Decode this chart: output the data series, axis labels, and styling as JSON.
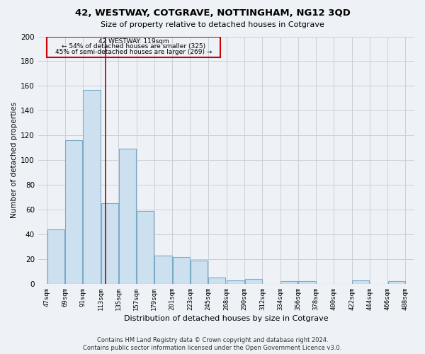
{
  "title": "42, WESTWAY, COTGRAVE, NOTTINGHAM, NG12 3QD",
  "subtitle": "Size of property relative to detached houses in Cotgrave",
  "xlabel": "Distribution of detached houses by size in Cotgrave",
  "ylabel": "Number of detached properties",
  "footnote1": "Contains HM Land Registry data © Crown copyright and database right 2024.",
  "footnote2": "Contains public sector information licensed under the Open Government Licence v3.0.",
  "annotation_line1": "42 WESTWAY: 119sqm",
  "annotation_line2": "← 54% of detached houses are smaller (325)",
  "annotation_line3": "45% of semi-detached houses are larger (269) →",
  "bar_edges": [
    47,
    69,
    91,
    113,
    135,
    157,
    179,
    201,
    223,
    245,
    268,
    290,
    312,
    334,
    356,
    378,
    400,
    422,
    444,
    466,
    488
  ],
  "bar_heights": [
    44,
    116,
    157,
    65,
    109,
    59,
    23,
    22,
    19,
    5,
    3,
    4,
    0,
    2,
    2,
    0,
    0,
    3,
    0,
    2
  ],
  "bar_color": "#cce0f0",
  "bar_edge_color": "#7aaac8",
  "grid_color": "#c8d0d8",
  "vline_x": 119,
  "vline_color": "#aa0000",
  "annotation_box_color": "#cc0000",
  "background_color": "#eef2f7",
  "ylim": [
    0,
    200
  ],
  "yticks": [
    0,
    20,
    40,
    60,
    80,
    100,
    120,
    140,
    160,
    180,
    200
  ]
}
